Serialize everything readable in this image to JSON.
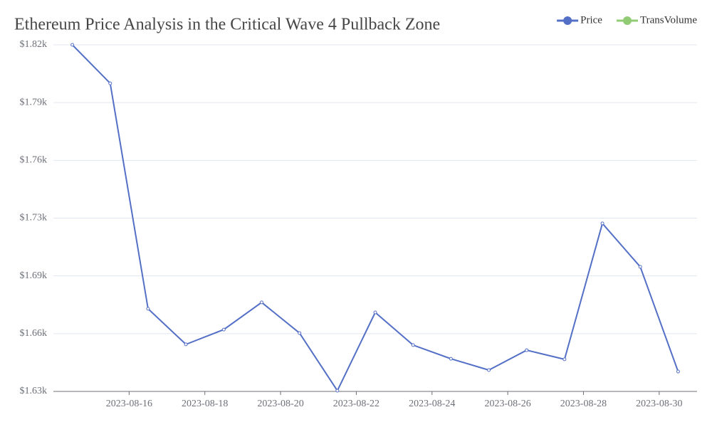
{
  "chart_data": {
    "type": "line",
    "title": "Ethereum Price Analysis in the Critical Wave 4 Pullback Zone",
    "x": [
      "2023-08-14",
      "2023-08-15",
      "2023-08-16",
      "2023-08-17",
      "2023-08-18",
      "2023-08-19",
      "2023-08-20",
      "2023-08-21",
      "2023-08-22",
      "2023-08-23",
      "2023-08-24",
      "2023-08-25",
      "2023-08-26",
      "2023-08-27",
      "2023-08-28",
      "2023-08-29",
      "2023-08-30"
    ],
    "series": [
      {
        "name": "Price",
        "color": "#5470c6",
        "values": [
          1820,
          1798.9,
          1675.3,
          1655.8,
          1663.9,
          1678.8,
          1662,
          1630.4,
          1673.3,
          1655.4,
          1647.9,
          1641.7,
          1652.6,
          1647.6,
          1722.1,
          1698.3,
          1640.9
        ]
      },
      {
        "name": "TransVolume",
        "color": "#91cc75",
        "values": [
          null,
          null,
          null,
          null,
          null,
          null,
          null,
          null,
          null,
          null,
          null,
          null,
          null,
          null,
          null,
          null,
          null
        ]
      }
    ],
    "xlim": [
      "2023-08-14",
      "2023-08-31"
    ],
    "xticks": [
      "2023-08-16",
      "2023-08-18",
      "2023-08-20",
      "2023-08-22",
      "2023-08-24",
      "2023-08-26",
      "2023-08-28",
      "2023-08-30"
    ],
    "ylim": [
      1630,
      1820
    ],
    "yticks": [
      {
        "value": 1630,
        "label": "$1.63k"
      },
      {
        "value": 1661.67,
        "label": "$1.66k"
      },
      {
        "value": 1693.33,
        "label": "$1.69k"
      },
      {
        "value": 1725,
        "label": "$1.73k"
      },
      {
        "value": 1756.67,
        "label": "$1.76k"
      },
      {
        "value": 1788.33,
        "label": "$1.79k"
      },
      {
        "value": 1820,
        "label": "$1.82k"
      }
    ],
    "grid": true,
    "legend": "top-right"
  }
}
